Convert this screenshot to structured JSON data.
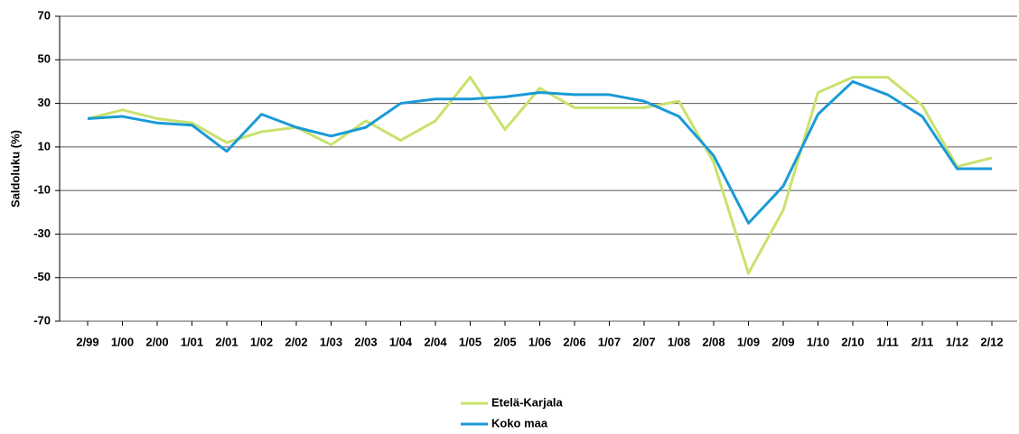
{
  "chart_data": {
    "type": "line",
    "y_label": "Saldoluku (%)",
    "categories": [
      "2/99",
      "1/00",
      "2/00",
      "1/01",
      "2/01",
      "1/02",
      "2/02",
      "1/03",
      "2/03",
      "1/04",
      "2/04",
      "1/05",
      "2/05",
      "1/06",
      "2/06",
      "1/07",
      "2/07",
      "1/08",
      "2/08",
      "1/09",
      "2/09",
      "1/10",
      "2/10",
      "1/11",
      "2/11",
      "1/12",
      "2/12"
    ],
    "series": [
      {
        "name": "Etelä-Karjala",
        "color": "#c8e26c",
        "values": [
          23,
          27,
          23,
          21,
          12,
          17,
          19,
          11,
          22,
          13,
          22,
          42,
          18,
          37,
          28,
          28,
          28,
          31,
          3,
          -48,
          -19,
          35,
          42,
          42,
          29,
          1,
          5
        ]
      },
      {
        "name": "Koko maa",
        "color": "#1a9ad6",
        "values": [
          23,
          24,
          21,
          20,
          8,
          25,
          19,
          15,
          19,
          30,
          32,
          32,
          33,
          35,
          34,
          34,
          31,
          24,
          6,
          -25,
          -8,
          25,
          40,
          34,
          24,
          0,
          0
        ]
      }
    ],
    "ylim": [
      -70,
      70
    ],
    "yticks": [
      -70,
      -50,
      -30,
      -10,
      10,
      30,
      50,
      70
    ],
    "grid": true
  }
}
